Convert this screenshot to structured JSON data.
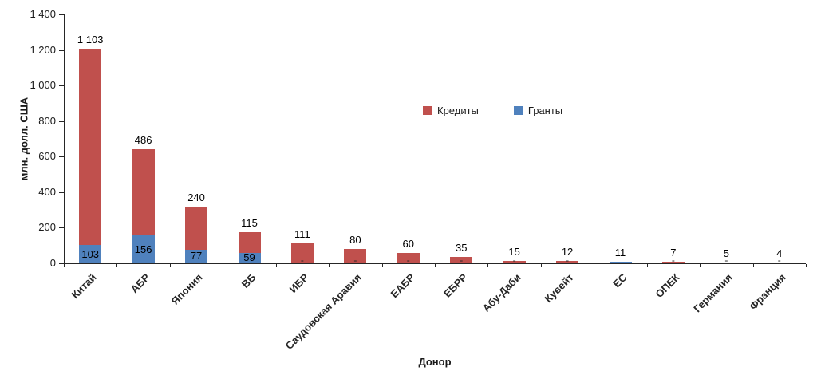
{
  "chart_data": {
    "type": "bar",
    "stacked": true,
    "title": "",
    "xlabel": "Донор",
    "ylabel": "млн. долл. США",
    "ylim": [
      0,
      1400
    ],
    "ytick_step": 200,
    "ytick_labels": [
      "0",
      "200",
      "400",
      "600",
      "800",
      "1 000",
      "1 200",
      "1 400"
    ],
    "grid": false,
    "legend_position": "inside-upper-center",
    "categories": [
      "Китай",
      "АБР",
      "Япония",
      "ВБ",
      "ИБР",
      "Саудовская Аравия",
      "ЕАБР",
      "ЕБРР",
      "Абу-Даби",
      "Кувейт",
      "ЕС",
      "ОПЕК",
      "Германия",
      "Франция"
    ],
    "series": [
      {
        "name": "Кредиты",
        "color": "#C0504D",
        "values": [
          1103,
          486,
          240,
          115,
          111,
          80,
          60,
          35,
          15,
          12,
          0,
          7,
          5,
          4
        ]
      },
      {
        "name": "Гранты",
        "color": "#4F81BD",
        "values": [
          103,
          156,
          77,
          59,
          0,
          0,
          0,
          0,
          0,
          0,
          11,
          0,
          0,
          0
        ]
      }
    ],
    "top_labels": [
      "1 103",
      "486",
      "240",
      "115",
      "111",
      "80",
      "60",
      "35",
      "15",
      "12",
      "11",
      "7",
      "5",
      "4"
    ],
    "grant_labels": [
      "103",
      "156",
      "77",
      "59",
      "-",
      "-",
      "-",
      "-",
      "-",
      "-",
      "",
      "-",
      "-",
      "-"
    ]
  },
  "legend": {
    "items": [
      {
        "label": "Кредиты",
        "color": "#C0504D"
      },
      {
        "label": "Гранты",
        "color": "#4F81BD"
      }
    ]
  }
}
